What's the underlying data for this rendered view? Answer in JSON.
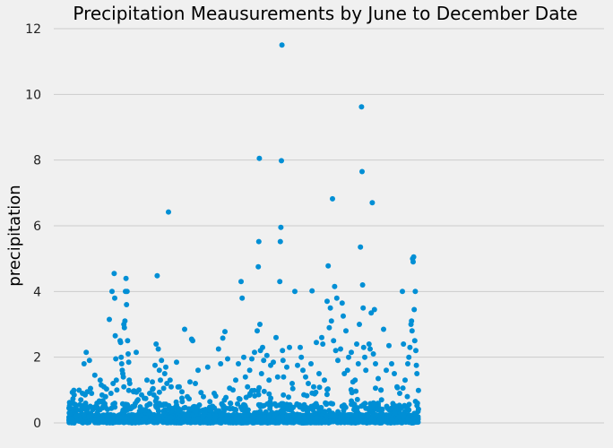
{
  "colors": {
    "background": "#f0f0f0",
    "point": "#008fd5",
    "grid": "#cbcbcb"
  },
  "chart_data": {
    "type": "scatter",
    "title": "Precipitation Meausurements by June to December Date",
    "xlabel": "",
    "ylabel": "precipitation",
    "ylim": [
      0,
      12
    ],
    "yticks": [
      0,
      2,
      4,
      6,
      8,
      10,
      12
    ],
    "grid": true,
    "x_range": [
      0,
      1000
    ],
    "x_axis_note": "date index (no tick labels shown)",
    "series": [
      {
        "name": "precipitation",
        "points": [
          [
            0,
            0.45
          ],
          [
            2,
            0.3
          ],
          [
            5,
            0.25
          ],
          [
            8,
            0.6
          ],
          [
            10,
            0.35
          ],
          [
            12,
            0.15
          ],
          [
            20,
            0.55
          ],
          [
            22,
            0.7
          ],
          [
            25,
            0.9
          ],
          [
            28,
            1.8
          ],
          [
            30,
            0.85
          ],
          [
            32,
            2.15
          ],
          [
            34,
            0.95
          ],
          [
            38,
            1.9
          ],
          [
            40,
            1.05
          ],
          [
            42,
            0.9
          ],
          [
            48,
            1.45
          ],
          [
            52,
            0.6
          ],
          [
            58,
            1.3
          ],
          [
            60,
            1.15
          ],
          [
            65,
            1.1
          ],
          [
            68,
            0.8
          ],
          [
            75,
            3.15
          ],
          [
            78,
            0.9
          ],
          [
            80,
            4.0
          ],
          [
            82,
            1.2
          ],
          [
            84,
            4.55
          ],
          [
            85,
            3.8
          ],
          [
            86,
            2.65
          ],
          [
            87,
            1.95
          ],
          [
            88,
            1.3
          ],
          [
            89,
            1.0
          ],
          [
            95,
            2.5
          ],
          [
            96,
            2.45
          ],
          [
            97,
            2.0
          ],
          [
            98,
            1.8
          ],
          [
            99,
            1.6
          ],
          [
            100,
            1.5
          ],
          [
            101,
            1.4
          ],
          [
            102,
            3.0
          ],
          [
            103,
            2.9
          ],
          [
            104,
            3.1
          ],
          [
            105,
            4.0
          ],
          [
            106,
            4.4
          ],
          [
            107,
            3.6
          ],
          [
            108,
            4.0
          ],
          [
            109,
            2.5
          ],
          [
            110,
            2.1
          ],
          [
            111,
            1.85
          ],
          [
            112,
            1.3
          ],
          [
            113,
            1.2
          ],
          [
            120,
            0.95
          ],
          [
            125,
            2.15
          ],
          [
            130,
            1.0
          ],
          [
            135,
            0.85
          ],
          [
            140,
            0.75
          ],
          [
            145,
            1.3
          ],
          [
            150,
            0.9
          ],
          [
            155,
            1.25
          ],
          [
            160,
            1.75
          ],
          [
            162,
            2.4
          ],
          [
            164,
            4.48
          ],
          [
            166,
            2.25
          ],
          [
            168,
            1.6
          ],
          [
            170,
            1.3
          ],
          [
            172,
            1.9
          ],
          [
            178,
            1.5
          ],
          [
            180,
            1.7
          ],
          [
            182,
            1.2
          ],
          [
            185,
            6.42
          ],
          [
            188,
            1.3
          ],
          [
            190,
            1.1
          ],
          [
            200,
            1.85
          ],
          [
            205,
            1.1
          ],
          [
            210,
            0.95
          ],
          [
            215,
            2.85
          ],
          [
            220,
            0.8
          ],
          [
            225,
            1.25
          ],
          [
            228,
            2.55
          ],
          [
            230,
            2.5
          ],
          [
            235,
            1.2
          ],
          [
            240,
            1.6
          ],
          [
            250,
            0.8
          ],
          [
            258,
            1.7
          ],
          [
            262,
            0.65
          ],
          [
            270,
            0.9
          ],
          [
            278,
            2.25
          ],
          [
            282,
            1.8
          ],
          [
            286,
            2.58
          ],
          [
            290,
            2.78
          ],
          [
            295,
            1.95
          ],
          [
            300,
            0.6
          ],
          [
            305,
            1.0
          ],
          [
            310,
            1.3
          ],
          [
            315,
            1.8
          ],
          [
            320,
            4.3
          ],
          [
            322,
            3.8
          ],
          [
            325,
            2.0
          ],
          [
            328,
            1.4
          ],
          [
            332,
            1.1
          ],
          [
            336,
            1.6
          ],
          [
            340,
            1.95
          ],
          [
            345,
            2.15
          ],
          [
            350,
            2.8
          ],
          [
            352,
            4.75
          ],
          [
            353,
            5.52
          ],
          [
            354,
            8.05
          ],
          [
            355,
            3.0
          ],
          [
            356,
            2.2
          ],
          [
            358,
            1.5
          ],
          [
            360,
            2.3
          ],
          [
            362,
            1.9
          ],
          [
            368,
            2.05
          ],
          [
            372,
            1.3
          ],
          [
            375,
            1.75
          ],
          [
            380,
            1.85
          ],
          [
            385,
            2.6
          ],
          [
            388,
            1.4
          ],
          [
            392,
            4.3
          ],
          [
            393,
            5.52
          ],
          [
            394,
            5.95
          ],
          [
            395,
            7.98
          ],
          [
            396,
            11.5
          ],
          [
            397,
            2.2
          ],
          [
            398,
            1.9
          ],
          [
            399,
            1.4
          ],
          [
            405,
            1.7
          ],
          [
            410,
            2.3
          ],
          [
            415,
            1.2
          ],
          [
            420,
            4.0
          ],
          [
            425,
            1.75
          ],
          [
            430,
            2.3
          ],
          [
            432,
            2.0
          ],
          [
            435,
            1.6
          ],
          [
            440,
            1.4
          ],
          [
            445,
            1.2
          ],
          [
            450,
            1.8
          ],
          [
            452,
            4.02
          ],
          [
            455,
            1.1
          ],
          [
            460,
            2.45
          ],
          [
            465,
            1.5
          ],
          [
            470,
            2.6
          ],
          [
            472,
            2.4
          ],
          [
            475,
            1.3
          ],
          [
            480,
            3.7
          ],
          [
            482,
            4.78
          ],
          [
            484,
            2.9
          ],
          [
            486,
            3.5
          ],
          [
            488,
            3.1
          ],
          [
            490,
            6.82
          ],
          [
            492,
            2.5
          ],
          [
            494,
            4.15
          ],
          [
            496,
            2.2
          ],
          [
            498,
            3.8
          ],
          [
            500,
            1.9
          ],
          [
            505,
            2.25
          ],
          [
            508,
            3.65
          ],
          [
            510,
            3.25
          ],
          [
            512,
            1.5
          ],
          [
            515,
            2.8
          ],
          [
            518,
            1.6
          ],
          [
            520,
            2.0
          ],
          [
            525,
            2.15
          ],
          [
            528,
            1.25
          ],
          [
            532,
            1.3
          ],
          [
            535,
            2.4
          ],
          [
            538,
            1.8
          ],
          [
            540,
            3.0
          ],
          [
            542,
            5.35
          ],
          [
            544,
            9.62
          ],
          [
            545,
            7.65
          ],
          [
            546,
            4.2
          ],
          [
            547,
            3.5
          ],
          [
            548,
            2.3
          ],
          [
            550,
            2.0
          ],
          [
            552,
            1.6
          ],
          [
            558,
            2.4
          ],
          [
            560,
            2.25
          ],
          [
            562,
            3.35
          ],
          [
            564,
            6.7
          ],
          [
            566,
            2.1
          ],
          [
            568,
            3.45
          ],
          [
            570,
            1.8
          ],
          [
            575,
            1.35
          ],
          [
            580,
            1.0
          ],
          [
            585,
            2.85
          ],
          [
            590,
            1.6
          ],
          [
            595,
            2.35
          ],
          [
            600,
            1.8
          ],
          [
            605,
            1.5
          ],
          [
            610,
            1.1
          ],
          [
            615,
            0.9
          ],
          [
            620,
            4.0
          ],
          [
            622,
            2.4
          ],
          [
            625,
            1.3
          ],
          [
            630,
            1.8
          ],
          [
            632,
            2.0
          ],
          [
            634,
            2.3
          ],
          [
            636,
            3.0
          ],
          [
            637,
            3.1
          ],
          [
            638,
            2.8
          ],
          [
            639,
            5.0
          ],
          [
            640,
            4.9
          ],
          [
            641,
            5.05
          ],
          [
            642,
            3.45
          ],
          [
            643,
            2.5
          ],
          [
            644,
            4.0
          ],
          [
            645,
            2.2
          ],
          [
            646,
            1.75
          ],
          [
            647,
            1.5
          ],
          [
            648,
            0.6
          ],
          [
            649,
            0.35
          ]
        ]
      }
    ]
  }
}
